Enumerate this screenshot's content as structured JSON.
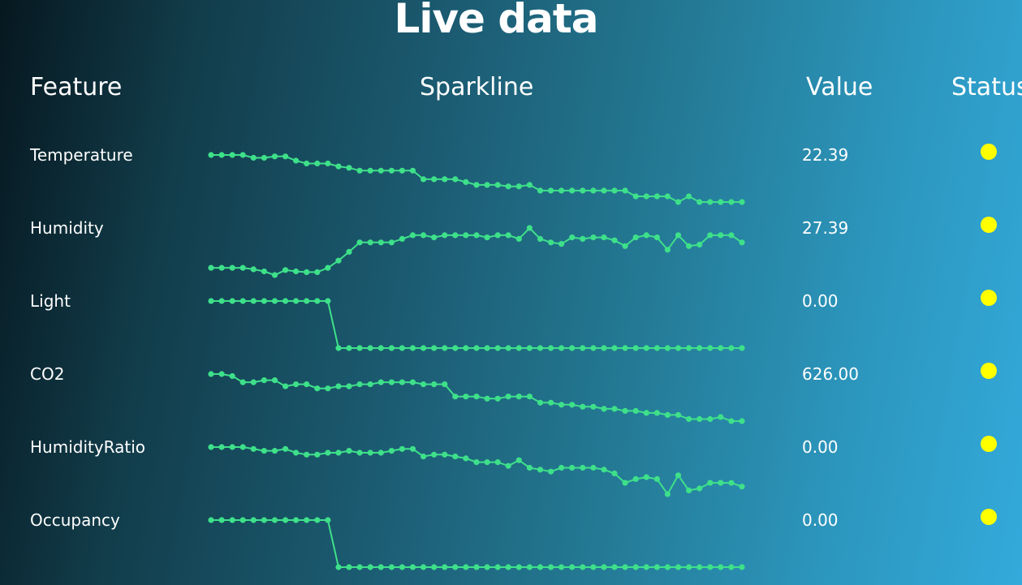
{
  "page": {
    "title": "Live data"
  },
  "table": {
    "headers": {
      "feature": "Feature",
      "sparkline": "Sparkline",
      "value": "Value",
      "status": "Status"
    }
  },
  "colors": {
    "sparkline": "#3ee08a",
    "status_ok": "#ffff00"
  },
  "chart_data": {
    "type": "line",
    "title": "Live data",
    "rows": [
      {
        "feature": "Temperature",
        "value": "22.39",
        "status": "ok",
        "y": [
          23.18,
          23.18,
          23.18,
          23.18,
          23.16,
          23.16,
          23.17,
          23.17,
          23.14,
          23.12,
          23.12,
          23.12,
          23.1,
          23.09,
          23.07,
          23.07,
          23.07,
          23.07,
          23.07,
          23.07,
          23.01,
          23.01,
          23.01,
          23.01,
          22.99,
          22.97,
          22.97,
          22.97,
          22.96,
          22.96,
          22.97,
          22.93,
          22.93,
          22.93,
          22.93,
          22.93,
          22.93,
          22.93,
          22.93,
          22.93,
          22.89,
          22.89,
          22.89,
          22.89,
          22.85,
          22.89,
          22.85,
          22.85,
          22.85,
          22.85,
          22.85
        ]
      },
      {
        "feature": "Humidity",
        "value": "27.39",
        "status": "ok",
        "y": [
          26.2,
          26.2,
          26.2,
          26.2,
          26.18,
          26.15,
          26.1,
          26.17,
          26.15,
          26.14,
          26.14,
          26.2,
          26.3,
          26.42,
          26.55,
          26.55,
          26.55,
          26.55,
          26.6,
          26.65,
          26.65,
          26.62,
          26.65,
          26.65,
          26.65,
          26.65,
          26.62,
          26.65,
          26.65,
          26.6,
          26.75,
          26.6,
          26.55,
          26.53,
          26.62,
          26.6,
          26.62,
          26.62,
          26.58,
          26.5,
          26.62,
          26.65,
          26.62,
          26.45,
          26.65,
          26.5,
          26.52,
          26.65,
          26.65,
          26.65,
          26.55
        ]
      },
      {
        "feature": "Light",
        "value": "0.00",
        "status": "ok",
        "y": [
          424,
          424,
          424,
          424,
          424,
          424,
          424,
          424,
          424,
          424,
          424,
          424,
          0,
          0,
          0,
          0,
          0,
          0,
          0,
          0,
          0,
          0,
          0,
          0,
          0,
          0,
          0,
          0,
          0,
          0,
          0,
          0,
          0,
          0,
          0,
          0,
          0,
          0,
          0,
          0,
          0,
          0,
          0,
          0,
          0,
          0,
          0,
          0,
          0,
          0,
          0
        ]
      },
      {
        "feature": "CO2",
        "value": "626.00",
        "status": "ok",
        "y": [
          642,
          642,
          641,
          638,
          638,
          639,
          639,
          636,
          637,
          637,
          635,
          635,
          636,
          636,
          637,
          637,
          638,
          638,
          638,
          638,
          637,
          637,
          637,
          631,
          631,
          631,
          630,
          630,
          631,
          631,
          631,
          628,
          628,
          627,
          627,
          626,
          626,
          625,
          625,
          624,
          624,
          623,
          623,
          622,
          622,
          620,
          620,
          620,
          621,
          619,
          619
        ]
      },
      {
        "feature": "HumidityRatio",
        "value": "0.00",
        "status": "ok",
        "y": [
          0.0044,
          0.0044,
          0.0044,
          0.0044,
          0.00439,
          0.00438,
          0.00438,
          0.00439,
          0.00437,
          0.00436,
          0.00436,
          0.00437,
          0.00437,
          0.00438,
          0.00437,
          0.00437,
          0.00437,
          0.00438,
          0.00439,
          0.00439,
          0.00435,
          0.00436,
          0.00436,
          0.00435,
          0.00434,
          0.00432,
          0.00432,
          0.00432,
          0.0043,
          0.00433,
          0.00429,
          0.00428,
          0.00427,
          0.00429,
          0.00429,
          0.00429,
          0.00429,
          0.00428,
          0.00426,
          0.00421,
          0.00423,
          0.00424,
          0.00423,
          0.00415,
          0.00425,
          0.00417,
          0.00418,
          0.00421,
          0.00421,
          0.00421,
          0.00419
        ]
      },
      {
        "feature": "Occupancy",
        "value": "0.00",
        "status": "ok",
        "y": [
          1,
          1,
          1,
          1,
          1,
          1,
          1,
          1,
          1,
          1,
          1,
          1,
          0,
          0,
          0,
          0,
          0,
          0,
          0,
          0,
          0,
          0,
          0,
          0,
          0,
          0,
          0,
          0,
          0,
          0,
          0,
          0,
          0,
          0,
          0,
          0,
          0,
          0,
          0,
          0,
          0,
          0,
          0,
          0,
          0,
          0,
          0,
          0,
          0,
          0,
          0
        ]
      }
    ]
  }
}
